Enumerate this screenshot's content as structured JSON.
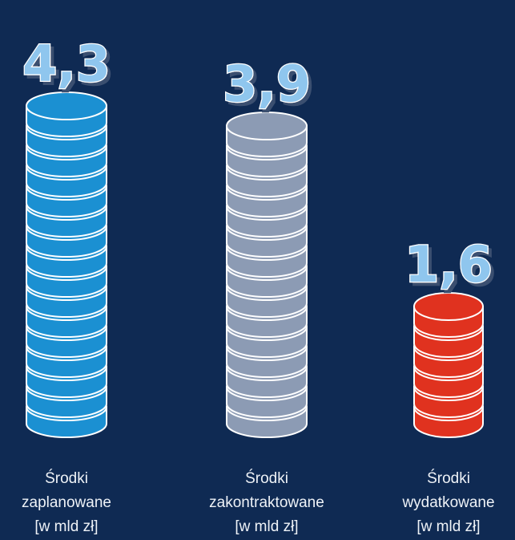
{
  "chart_data": {
    "type": "coin-stack",
    "categories": [
      "Środki\nzaplanowane\n[w mld zł]",
      "Środki\nzakontraktowane\n[w mld zł]",
      "Środki\nwydatkowane\n[w mld zł]"
    ],
    "series": [
      {
        "values": [
          4.3,
          3.9,
          1.6
        ],
        "value_labels": [
          "4,3",
          "3,9",
          "1,6"
        ],
        "colors": [
          "#1b90d2",
          "#8c9bb4",
          "#e0321f"
        ]
      }
    ]
  }
}
